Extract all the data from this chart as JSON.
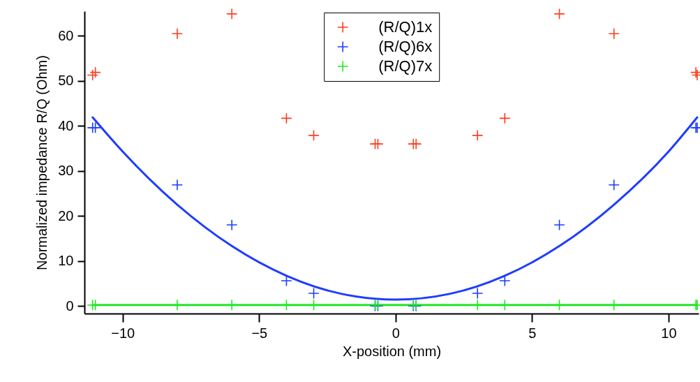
{
  "chart_data": {
    "type": "scatter",
    "xlabel": "X-position (mm)",
    "ylabel": "Normalized impedance R/Q (Ohm)",
    "xlim": [
      -11.4,
      11.1
    ],
    "ylim": [
      -1.7,
      65.5
    ],
    "xticks": [
      -10,
      -5,
      0,
      5,
      10
    ],
    "yticks": [
      0,
      10,
      20,
      30,
      40,
      50,
      60
    ],
    "grid": false,
    "legend": "top",
    "marker": "cross",
    "series": [
      {
        "name": "(R/Q)1x",
        "color": "#ff3c1e",
        "x": [
          -11.1,
          -11,
          -8,
          -6,
          -4,
          -3,
          -0.75,
          -0.65,
          0.65,
          0.75,
          3,
          4,
          6,
          8,
          11,
          11.05
        ],
        "values": [
          51.3,
          51.9,
          60.5,
          64.9,
          41.7,
          37.9,
          36.0,
          36.0,
          36.0,
          36.0,
          37.9,
          41.7,
          64.9,
          60.5,
          51.9,
          51.3
        ]
      },
      {
        "name": "(R/Q)6x",
        "color": "#1e3cff",
        "x": [
          -11.1,
          -11,
          -8,
          -6,
          -4,
          -3,
          -0.75,
          -0.65,
          0.65,
          0.75,
          3,
          4,
          6,
          8,
          11,
          11.05
        ],
        "values": [
          39.6,
          39.6,
          26.9,
          18.0,
          5.6,
          2.8,
          0,
          0,
          0,
          0,
          2.8,
          5.6,
          18.0,
          26.9,
          39.6,
          39.6
        ]
      },
      {
        "name": "(R/Q)7x",
        "type": "line",
        "marker": "cross",
        "color": "#22e822",
        "x": [
          -11.1,
          -11,
          -8,
          -6,
          -4,
          -3,
          -0.75,
          -0.65,
          0.65,
          0.75,
          3,
          4,
          6,
          8,
          11,
          11.05
        ],
        "values": [
          0.2,
          0.2,
          0.2,
          0.2,
          0.2,
          0.2,
          0.2,
          0.2,
          0.2,
          0.2,
          0.2,
          0.2,
          0.2,
          0.2,
          0.2,
          0.2
        ]
      },
      {
        "type": "line",
        "marker": "none",
        "color": "#1e3cff",
        "x": [
          -11.1,
          -10,
          -8,
          -6,
          -4,
          -2,
          0,
          2,
          4,
          6,
          8,
          10,
          11.05
        ],
        "values": [
          41.9,
          34.3,
          22.5,
          13.3,
          6.7,
          2.7,
          1.4,
          2.7,
          6.7,
          13.3,
          22.5,
          34.3,
          41.9
        ]
      }
    ]
  }
}
